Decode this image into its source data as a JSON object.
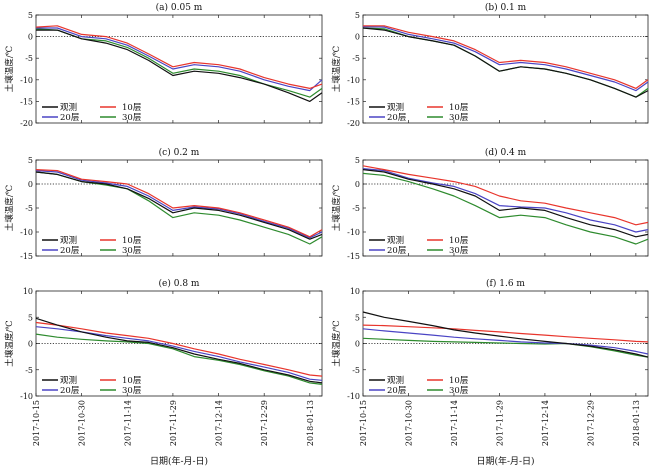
{
  "figure": {
    "date_ticks": [
      "2017-10-15",
      "2017-10-30",
      "2017-11-14",
      "2017-11-29",
      "2017-12-14",
      "2017-12-29",
      "2018-01-13"
    ],
    "xlabel": "日期(年-月-日)"
  },
  "colors": {
    "观测": "#111111",
    "10层": "#e8352c",
    "20层": "#4a44c4",
    "30层": "#2e8b2e"
  },
  "chart_data": [
    {
      "type": "line",
      "title": "(a) 0.05 m",
      "ylabel": "土壤温度/℃",
      "ylim": [
        -20,
        5
      ],
      "yticks": [
        5,
        0,
        -5,
        -10,
        -15,
        -20
      ],
      "x": [
        "2017-10-15",
        "2017-10-22",
        "2017-10-30",
        "2017-11-07",
        "2017-11-14",
        "2017-11-21",
        "2017-11-29",
        "2017-12-06",
        "2017-12-14",
        "2017-12-21",
        "2017-12-29",
        "2018-01-06",
        "2018-01-13",
        "2018-01-17"
      ],
      "series": [
        {
          "name": "观测",
          "values": [
            1.5,
            1.5,
            -0.5,
            -1.5,
            -3,
            -5.5,
            -9,
            -8,
            -8.5,
            -9.5,
            -11,
            -13,
            -15,
            -13
          ]
        },
        {
          "name": "10层",
          "values": [
            2.2,
            2.5,
            0.5,
            0,
            -1.5,
            -4,
            -7,
            -6,
            -6.5,
            -7.5,
            -9.5,
            -11,
            -12,
            -11
          ]
        },
        {
          "name": "20层",
          "values": [
            2,
            2,
            0,
            -0.5,
            -2,
            -4.5,
            -7.5,
            -6.5,
            -7,
            -8,
            -10,
            -11.5,
            -12.5,
            -10
          ]
        },
        {
          "name": "30层",
          "values": [
            1.8,
            1.5,
            -0.5,
            -1,
            -2.5,
            -5,
            -8.5,
            -7.5,
            -8,
            -9,
            -11,
            -12.5,
            -14,
            -12
          ]
        }
      ]
    },
    {
      "type": "line",
      "title": "(b) 0.1 m",
      "ylabel": "土壤温度/℃",
      "ylim": [
        -20,
        5
      ],
      "yticks": [
        5,
        0,
        -5,
        -10,
        -15,
        -20
      ],
      "x": [
        "2017-10-15",
        "2017-10-22",
        "2017-10-30",
        "2017-11-07",
        "2017-11-14",
        "2017-11-21",
        "2017-11-29",
        "2017-12-06",
        "2017-12-14",
        "2017-12-21",
        "2017-12-29",
        "2018-01-06",
        "2018-01-13",
        "2018-01-17"
      ],
      "series": [
        {
          "name": "观测",
          "values": [
            2,
            1.5,
            0,
            -1,
            -2,
            -4.5,
            -8,
            -7,
            -7.5,
            -8.5,
            -10,
            -12,
            -14,
            -12.5
          ]
        },
        {
          "name": "10层",
          "values": [
            2.5,
            2.5,
            1,
            0,
            -1,
            -3,
            -6,
            -5.5,
            -6,
            -7,
            -8.5,
            -10,
            -12,
            -10
          ]
        },
        {
          "name": "20层",
          "values": [
            2.3,
            2.2,
            0.5,
            -0.5,
            -1.5,
            -3.5,
            -6.5,
            -6,
            -6.5,
            -7.5,
            -9,
            -10.5,
            -12.5,
            -10.5
          ]
        },
        {
          "name": "30层",
          "values": [
            2,
            1.8,
            0,
            -1,
            -2,
            -4.5,
            -8,
            -7,
            -7.5,
            -8.5,
            -10,
            -12,
            -14,
            -12
          ]
        }
      ]
    },
    {
      "type": "line",
      "title": "(c) 0.2 m",
      "ylabel": "土壤温度/℃",
      "ylim": [
        -15,
        5
      ],
      "yticks": [
        5,
        0,
        -5,
        -10,
        -15
      ],
      "x": [
        "2017-10-15",
        "2017-10-22",
        "2017-10-30",
        "2017-11-07",
        "2017-11-14",
        "2017-11-21",
        "2017-11-29",
        "2017-12-06",
        "2017-12-14",
        "2017-12-21",
        "2017-12-29",
        "2018-01-06",
        "2018-01-13",
        "2018-01-17"
      ],
      "series": [
        {
          "name": "观测",
          "values": [
            2.5,
            2,
            0.5,
            0,
            -1,
            -3,
            -6,
            -5,
            -5.5,
            -6.5,
            -8,
            -9.5,
            -11.5,
            -10.5
          ]
        },
        {
          "name": "10层",
          "values": [
            3,
            2.8,
            1,
            0.5,
            0,
            -2,
            -5,
            -4.5,
            -5,
            -6,
            -7.5,
            -9,
            -11,
            -9.5
          ]
        },
        {
          "name": "20层",
          "values": [
            2.8,
            2.5,
            0.8,
            0.2,
            -0.5,
            -2.5,
            -5.5,
            -4.8,
            -5.2,
            -6.2,
            -7.8,
            -9.2,
            -11.2,
            -10
          ]
        },
        {
          "name": "30层",
          "values": [
            2.5,
            2,
            0.5,
            -0.2,
            -1,
            -3.5,
            -7,
            -6,
            -6.5,
            -7.5,
            -9,
            -10.5,
            -12.5,
            -11
          ]
        }
      ]
    },
    {
      "type": "line",
      "title": "(d) 0.4 m",
      "ylabel": "土壤温度/℃",
      "ylim": [
        -15,
        5
      ],
      "yticks": [
        5,
        0,
        -5,
        -10,
        -15
      ],
      "x": [
        "2017-10-15",
        "2017-10-22",
        "2017-10-30",
        "2017-11-07",
        "2017-11-14",
        "2017-11-21",
        "2017-11-29",
        "2017-12-06",
        "2017-12-14",
        "2017-12-21",
        "2017-12-29",
        "2018-01-06",
        "2018-01-13",
        "2018-01-17"
      ],
      "series": [
        {
          "name": "观测",
          "values": [
            3,
            2.5,
            1,
            0,
            -1,
            -2.5,
            -5.5,
            -5,
            -5.5,
            -7,
            -8.5,
            -9.5,
            -11,
            -10.5
          ]
        },
        {
          "name": "10层",
          "values": [
            3.8,
            3,
            2,
            1.2,
            0.5,
            -0.5,
            -2.5,
            -3.5,
            -4,
            -5,
            -6,
            -7,
            -8.5,
            -8
          ]
        },
        {
          "name": "20层",
          "values": [
            3.2,
            2.8,
            1.2,
            0.2,
            -0.5,
            -2,
            -4.5,
            -4.8,
            -5,
            -6,
            -7.5,
            -8.5,
            -10,
            -9.5
          ]
        },
        {
          "name": "30层",
          "values": [
            2.2,
            1.8,
            0.5,
            -1,
            -2.5,
            -4.5,
            -7,
            -6.5,
            -7,
            -8.5,
            -10,
            -11,
            -12.5,
            -11.5
          ]
        }
      ]
    },
    {
      "type": "line",
      "title": "(e) 0.8 m",
      "ylabel": "土壤温度/℃",
      "ylim": [
        -10,
        10
      ],
      "yticks": [
        10,
        5,
        0,
        -5,
        -10
      ],
      "x": [
        "2017-10-15",
        "2017-10-22",
        "2017-10-30",
        "2017-11-07",
        "2017-11-14",
        "2017-11-21",
        "2017-11-29",
        "2017-12-06",
        "2017-12-14",
        "2017-12-21",
        "2017-12-29",
        "2018-01-06",
        "2018-01-13",
        "2018-01-17"
      ],
      "series": [
        {
          "name": "观测",
          "values": [
            4.8,
            3.5,
            2.2,
            1.2,
            0.5,
            0.2,
            -0.8,
            -2,
            -3,
            -3.8,
            -5,
            -6,
            -7.2,
            -7.5
          ]
        },
        {
          "name": "10层",
          "values": [
            4,
            3.5,
            2.8,
            2,
            1.5,
            1,
            0,
            -1,
            -2,
            -3,
            -4,
            -5,
            -6,
            -6.2
          ]
        },
        {
          "name": "20层",
          "values": [
            3.2,
            2.8,
            2.2,
            1.5,
            1,
            0.5,
            -0.5,
            -1.5,
            -2.5,
            -3.5,
            -4.5,
            -5.5,
            -6.8,
            -7
          ]
        },
        {
          "name": "30层",
          "values": [
            1.8,
            1.2,
            0.8,
            0.5,
            0.3,
            0,
            -1,
            -2.5,
            -3.2,
            -4,
            -5.2,
            -6.2,
            -7.5,
            -7.8
          ]
        }
      ]
    },
    {
      "type": "line",
      "title": "(f) 1.6 m",
      "ylabel": "土壤温度/℃",
      "ylim": [
        -10,
        10
      ],
      "yticks": [
        10,
        5,
        0,
        -5,
        -10
      ],
      "x": [
        "2017-10-15",
        "2017-10-22",
        "2017-10-30",
        "2017-11-07",
        "2017-11-14",
        "2017-11-21",
        "2017-11-29",
        "2017-12-06",
        "2017-12-14",
        "2017-12-21",
        "2017-12-29",
        "2018-01-06",
        "2018-01-13",
        "2018-01-17"
      ],
      "series": [
        {
          "name": "观测",
          "values": [
            6,
            5,
            4.2,
            3.4,
            2.6,
            2,
            1.4,
            0.9,
            0.4,
            0,
            -0.5,
            -1.2,
            -2,
            -2.6
          ]
        },
        {
          "name": "10层",
          "values": [
            3.5,
            3.4,
            3.2,
            3,
            2.8,
            2.5,
            2.2,
            1.9,
            1.6,
            1.3,
            1,
            0.7,
            0.4,
            0.3
          ]
        },
        {
          "name": "20层",
          "values": [
            2.8,
            2.4,
            2,
            1.6,
            1.2,
            0.9,
            0.6,
            0.3,
            0.1,
            0,
            -0.3,
            -0.8,
            -1.5,
            -2
          ]
        },
        {
          "name": "30层",
          "values": [
            1,
            0.8,
            0.6,
            0.4,
            0.3,
            0.2,
            0.1,
            0,
            -0.1,
            0,
            -0.6,
            -1.4,
            -2.2,
            -2.6
          ]
        }
      ]
    }
  ]
}
